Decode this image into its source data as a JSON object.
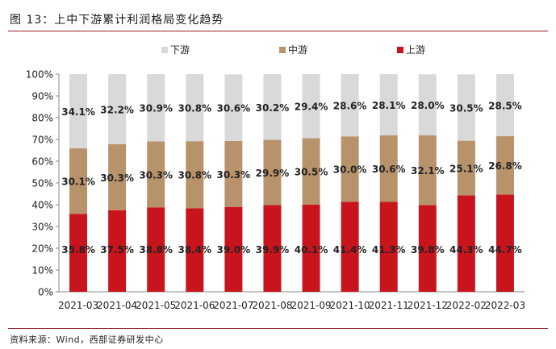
{
  "figure": {
    "title": "图 13：上中下游累计利润格局变化趋势",
    "source": "资料来源：Wind，西部证券研发中心"
  },
  "chart_data": {
    "type": "bar",
    "stacked": true,
    "categories": [
      "2021-03",
      "2021-04",
      "2021-05",
      "2021-06",
      "2021-07",
      "2021-08",
      "2021-09",
      "2021-10",
      "2021-11",
      "2021-12",
      "2022-02",
      "2022-03"
    ],
    "series": [
      {
        "name": "上游",
        "color": "#c8151d",
        "values": [
          35.8,
          37.5,
          38.8,
          38.4,
          39.0,
          39.9,
          40.1,
          41.4,
          41.3,
          39.8,
          44.3,
          44.7
        ],
        "labels": [
          "35.8%",
          "37.5%",
          "38.8%",
          "38.4%",
          "39.0%",
          "39.9%",
          "40.1%",
          "41.4%",
          "41.3%",
          "39.8%",
          "44.3%",
          "44.7%"
        ]
      },
      {
        "name": "中游",
        "color": "#b8926b",
        "values": [
          30.1,
          30.3,
          30.3,
          30.8,
          30.3,
          29.9,
          30.5,
          30.0,
          30.6,
          32.1,
          25.1,
          26.8
        ],
        "labels": [
          "30.1%",
          "30.3%",
          "30.3%",
          "30.8%",
          "30.3%",
          "29.9%",
          "30.5%",
          "30.0%",
          "30.6%",
          "32.1%",
          "25.1%",
          "26.8%"
        ]
      },
      {
        "name": "下游",
        "color": "#d9d9d9",
        "values": [
          34.1,
          32.2,
          30.9,
          30.8,
          30.6,
          30.2,
          29.4,
          28.6,
          28.1,
          28.0,
          30.5,
          28.5
        ],
        "labels": [
          "34.1%",
          "32.2%",
          "30.9%",
          "30.8%",
          "30.6%",
          "30.2%",
          "29.4%",
          "28.6%",
          "28.1%",
          "28.0%",
          "30.5%",
          "28.5%"
        ]
      }
    ],
    "legend_order": [
      "下游",
      "中游",
      "上游"
    ],
    "legend_position": "top",
    "y_ticks": [
      "0%",
      "10%",
      "20%",
      "30%",
      "40%",
      "50%",
      "60%",
      "70%",
      "80%",
      "90%",
      "100%"
    ],
    "ylim": [
      0,
      100
    ],
    "grid": false
  }
}
